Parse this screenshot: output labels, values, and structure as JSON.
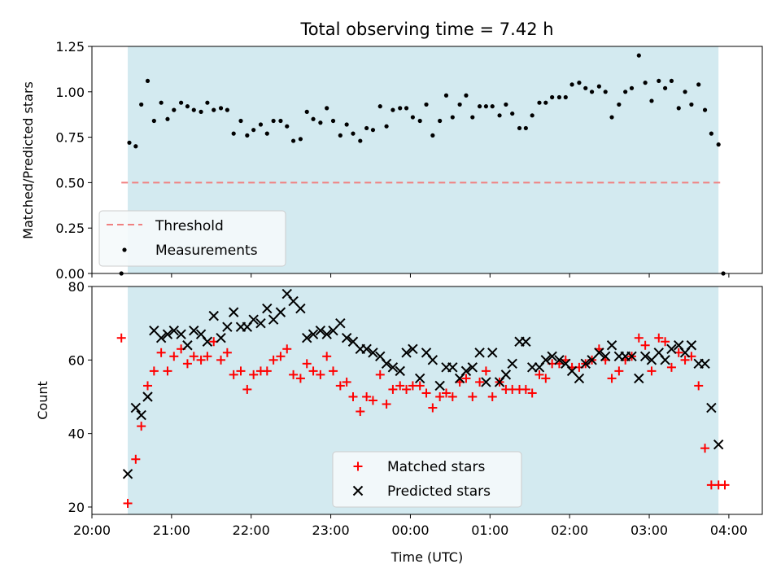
{
  "title": "Total observing time = 7.42 h",
  "colors": {
    "background_band": "#d3eaf0",
    "threshold": "#f08080",
    "measurements": "#000000",
    "matched": "#ff0000",
    "predicted": "#000000"
  },
  "chart_data": [
    {
      "type": "scatter",
      "ylabel": "Matched/Predicted stars",
      "xlim": [
        20.0,
        28.42
      ],
      "ylim": [
        0.0,
        1.25
      ],
      "yticks": [
        "0.00",
        "0.25",
        "0.50",
        "0.75",
        "1.00",
        "1.25"
      ],
      "shaded_x_range": [
        20.45,
        27.87
      ],
      "legend": {
        "placement": "lower-left",
        "entries": [
          "Threshold",
          "Measurements"
        ]
      },
      "threshold": {
        "name": "Threshold",
        "y": 0.5,
        "x_range": [
          20.37,
          27.93
        ]
      },
      "series": [
        {
          "name": "Measurements",
          "x": [
            20.37,
            20.47,
            20.55,
            20.62,
            20.7,
            20.78,
            20.87,
            20.95,
            21.03,
            21.12,
            21.2,
            21.28,
            21.37,
            21.45,
            21.53,
            21.62,
            21.7,
            21.78,
            21.87,
            21.95,
            22.03,
            22.12,
            22.2,
            22.28,
            22.37,
            22.45,
            22.53,
            22.62,
            22.7,
            22.78,
            22.87,
            22.95,
            23.03,
            23.12,
            23.2,
            23.28,
            23.37,
            23.45,
            23.53,
            23.62,
            23.7,
            23.78,
            23.87,
            23.95,
            24.03,
            24.12,
            24.2,
            24.28,
            24.37,
            24.45,
            24.53,
            24.62,
            24.7,
            24.78,
            24.87,
            24.95,
            25.03,
            25.12,
            25.2,
            25.28,
            25.37,
            25.45,
            25.53,
            25.62,
            25.7,
            25.78,
            25.87,
            25.95,
            26.03,
            26.12,
            26.2,
            26.28,
            26.37,
            26.45,
            26.53,
            26.62,
            26.7,
            26.78,
            26.87,
            26.95,
            27.03,
            27.12,
            27.2,
            27.28,
            27.37,
            27.45,
            27.53,
            27.62,
            27.7,
            27.78,
            27.87,
            27.93
          ],
          "y": [
            0.0,
            0.72,
            0.7,
            0.93,
            1.06,
            0.84,
            0.94,
            0.85,
            0.9,
            0.94,
            0.92,
            0.9,
            0.89,
            0.94,
            0.9,
            0.91,
            0.9,
            0.77,
            0.84,
            0.76,
            0.79,
            0.82,
            0.77,
            0.84,
            0.84,
            0.81,
            0.73,
            0.74,
            0.89,
            0.85,
            0.83,
            0.91,
            0.84,
            0.76,
            0.82,
            0.77,
            0.73,
            0.8,
            0.79,
            0.92,
            0.81,
            0.9,
            0.91,
            0.91,
            0.86,
            0.84,
            0.93,
            0.76,
            0.84,
            0.98,
            0.86,
            0.93,
            0.98,
            0.86,
            0.92,
            0.92,
            0.92,
            0.87,
            0.93,
            0.88,
            0.8,
            0.8,
            0.87,
            0.94,
            0.94,
            0.97,
            0.97,
            0.97,
            1.04,
            1.05,
            1.02,
            1.0,
            1.03,
            1.0,
            0.86,
            0.93,
            1.0,
            1.02,
            1.2,
            1.05,
            0.95,
            1.06,
            1.02,
            1.06,
            0.91,
            1.0,
            0.93,
            1.04,
            0.9,
            0.77,
            0.71,
            0.0
          ]
        }
      ]
    },
    {
      "type": "scatter",
      "xlabel": "Time (UTC)",
      "ylabel": "Count",
      "xlim": [
        20.0,
        28.42
      ],
      "ylim": [
        18,
        80
      ],
      "yticks": [
        "20",
        "40",
        "60",
        "80"
      ],
      "xticks": [
        "20:00",
        "21:00",
        "22:00",
        "23:00",
        "00:00",
        "01:00",
        "02:00",
        "03:00",
        "04:00"
      ],
      "shaded_x_range": [
        20.45,
        27.87
      ],
      "legend": {
        "placement": "lower-center",
        "entries": [
          "Matched stars",
          "Predicted stars"
        ]
      },
      "series": [
        {
          "name": "Matched stars",
          "marker": "+",
          "x": [
            20.37,
            20.45,
            20.55,
            20.62,
            20.7,
            20.78,
            20.87,
            20.95,
            21.03,
            21.12,
            21.2,
            21.28,
            21.37,
            21.45,
            21.53,
            21.62,
            21.7,
            21.78,
            21.87,
            21.95,
            22.03,
            22.12,
            22.2,
            22.28,
            22.37,
            22.45,
            22.53,
            22.62,
            22.7,
            22.78,
            22.87,
            22.95,
            23.03,
            23.12,
            23.2,
            23.28,
            23.37,
            23.45,
            23.53,
            23.62,
            23.7,
            23.78,
            23.87,
            23.95,
            24.03,
            24.12,
            24.2,
            24.28,
            24.37,
            24.45,
            24.53,
            24.62,
            24.7,
            24.78,
            24.87,
            24.95,
            25.03,
            25.12,
            25.2,
            25.28,
            25.37,
            25.45,
            25.53,
            25.62,
            25.7,
            25.78,
            25.87,
            25.95,
            26.03,
            26.12,
            26.2,
            26.28,
            26.37,
            26.45,
            26.53,
            26.62,
            26.7,
            26.78,
            26.87,
            26.95,
            27.03,
            27.12,
            27.2,
            27.28,
            27.37,
            27.45,
            27.53,
            27.62,
            27.7,
            27.78,
            27.87,
            27.95
          ],
          "y": [
            66,
            21,
            33,
            42,
            53,
            57,
            62,
            57,
            61,
            63,
            59,
            61,
            60,
            61,
            65,
            60,
            62,
            56,
            57,
            52,
            56,
            57,
            57,
            60,
            61,
            63,
            56,
            55,
            59,
            57,
            56,
            61,
            57,
            53,
            54,
            50,
            46,
            50,
            49,
            56,
            48,
            52,
            53,
            52,
            53,
            53,
            51,
            47,
            50,
            51,
            50,
            54,
            55,
            50,
            54,
            57,
            50,
            54,
            52,
            52,
            52,
            52,
            51,
            56,
            55,
            59,
            59,
            60,
            58,
            58,
            59,
            60,
            63,
            60,
            55,
            57,
            60,
            61,
            66,
            64,
            57,
            66,
            65,
            58,
            62,
            60,
            61,
            53,
            36,
            26,
            26,
            26
          ]
        },
        {
          "name": "Predicted stars",
          "marker": "x",
          "x": [
            20.45,
            20.55,
            20.62,
            20.7,
            20.78,
            20.87,
            20.95,
            21.03,
            21.12,
            21.2,
            21.28,
            21.37,
            21.45,
            21.53,
            21.62,
            21.7,
            21.78,
            21.87,
            21.95,
            22.03,
            22.12,
            22.2,
            22.28,
            22.37,
            22.45,
            22.53,
            22.62,
            22.7,
            22.78,
            22.87,
            22.95,
            23.03,
            23.12,
            23.2,
            23.28,
            23.37,
            23.45,
            23.53,
            23.62,
            23.7,
            23.78,
            23.87,
            23.95,
            24.03,
            24.12,
            24.2,
            24.28,
            24.37,
            24.45,
            24.53,
            24.62,
            24.7,
            24.78,
            24.87,
            24.95,
            25.03,
            25.12,
            25.2,
            25.28,
            25.37,
            25.45,
            25.53,
            25.62,
            25.7,
            25.78,
            25.87,
            25.95,
            26.03,
            26.12,
            26.2,
            26.28,
            26.37,
            26.45,
            26.53,
            26.62,
            26.7,
            26.78,
            26.87,
            26.95,
            27.03,
            27.12,
            27.2,
            27.28,
            27.37,
            27.45,
            27.53,
            27.62,
            27.7,
            27.78,
            27.87
          ],
          "y": [
            29,
            47,
            45,
            50,
            68,
            66,
            67,
            68,
            67,
            64,
            68,
            67,
            65,
            72,
            66,
            69,
            73,
            69,
            69,
            71,
            70,
            74,
            71,
            73,
            78,
            76,
            74,
            66,
            67,
            68,
            67,
            68,
            70,
            66,
            65,
            63,
            63,
            62,
            61,
            59,
            58,
            57,
            62,
            63,
            55,
            62,
            60,
            53,
            58,
            58,
            55,
            57,
            58,
            62,
            54,
            62,
            54,
            56,
            59,
            65,
            65,
            58,
            58,
            60,
            61,
            60,
            59,
            57,
            55,
            59,
            60,
            62,
            61,
            64,
            61,
            61,
            61,
            55,
            61,
            60,
            62,
            60,
            63,
            64,
            62,
            64,
            59,
            59,
            47,
            37
          ]
        }
      ]
    }
  ]
}
